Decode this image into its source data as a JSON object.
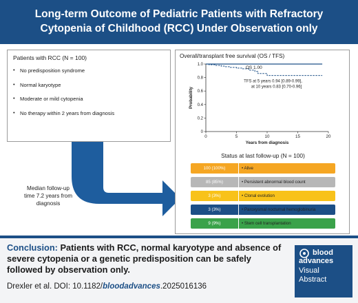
{
  "header": {
    "title_line1": "Long-term Outcome of Pediatric Patients with Refractory",
    "title_line2": "Cytopenia of Childhood (RCC) Under Observation only"
  },
  "criteria": {
    "title": "Patients with RCC (N = 100)",
    "items": [
      "No predisposition syndrome",
      "Normal karyotype",
      "Moderate or mild cytopenia",
      "No therapy within 2 years from diagnosis"
    ]
  },
  "followup": {
    "line1": "Median follow-up",
    "line2": "time 7.2 years from",
    "line3": "diagnosis"
  },
  "chart_data": {
    "type": "line",
    "title": "Overall/transplant free survival (OS / TFS)",
    "xlabel": "Years from diagnosis",
    "ylabel": "Probability",
    "xlim": [
      0,
      20
    ],
    "ylim": [
      0,
      1.0
    ],
    "x_ticks": [
      "0",
      "5",
      "10",
      "15",
      "20"
    ],
    "y_ticks": [
      "0",
      "0.2",
      "0.4",
      "0.6",
      "0.8",
      "1.0"
    ],
    "series": [
      {
        "name": "OS",
        "label": "OS 1.00",
        "x": [
          0,
          19
        ],
        "y": [
          1.0,
          1.0
        ]
      },
      {
        "name": "TFS",
        "label_line1": "TFS at 5 years 0.94 [0.89-0.99],",
        "label_line2": "at 10 years 0.83 [0.70-0.96]",
        "x": [
          0,
          0.5,
          1,
          1.5,
          2,
          2.5,
          3,
          3.5,
          4,
          4.5,
          5,
          6,
          7,
          8,
          8.5,
          9,
          10,
          12,
          14,
          16,
          19
        ],
        "y": [
          1.0,
          0.99,
          0.99,
          0.98,
          0.98,
          0.97,
          0.96,
          0.96,
          0.95,
          0.95,
          0.94,
          0.93,
          0.91,
          0.89,
          0.86,
          0.86,
          0.83,
          0.83,
          0.83,
          0.83,
          0.83
        ]
      }
    ]
  },
  "status": {
    "title": "Status at last follow-up (N = 100)",
    "rows": [
      {
        "count": "100 (100%)",
        "label": "Alive",
        "color": "#f5a623"
      },
      {
        "count": "85 (85%)",
        "label": "Persistent abnormal blood count",
        "color": "#b7b7b7"
      },
      {
        "count": "3 (3%)",
        "label": "Clonal evolution",
        "color": "#f8c21a"
      },
      {
        "count": "3 (3%)",
        "label": "Paroxysmal nocturnal hemoglobinuria",
        "color": "#1c4f86"
      },
      {
        "count": "9 (9%)",
        "label": "Stem cell transplantation",
        "color": "#3aa24a"
      }
    ]
  },
  "conclusion": {
    "label": "Conclusion:",
    "text": "Patients with RCC, normal karyotype and absence of severe cytopenia or a genetic predisposition can be safely followed by observation only."
  },
  "citation": {
    "prefix": "Drexler et al. DOI: 10.1182/",
    "bold": "bloodadvances",
    "suffix": ".2025016136"
  },
  "logo": {
    "line1": "blood",
    "line2": "advances",
    "line3": "Visual",
    "line4": "Abstract"
  },
  "colors": {
    "brand_blue": "#1c4f86",
    "arrow_blue": "#1e5d9e"
  }
}
